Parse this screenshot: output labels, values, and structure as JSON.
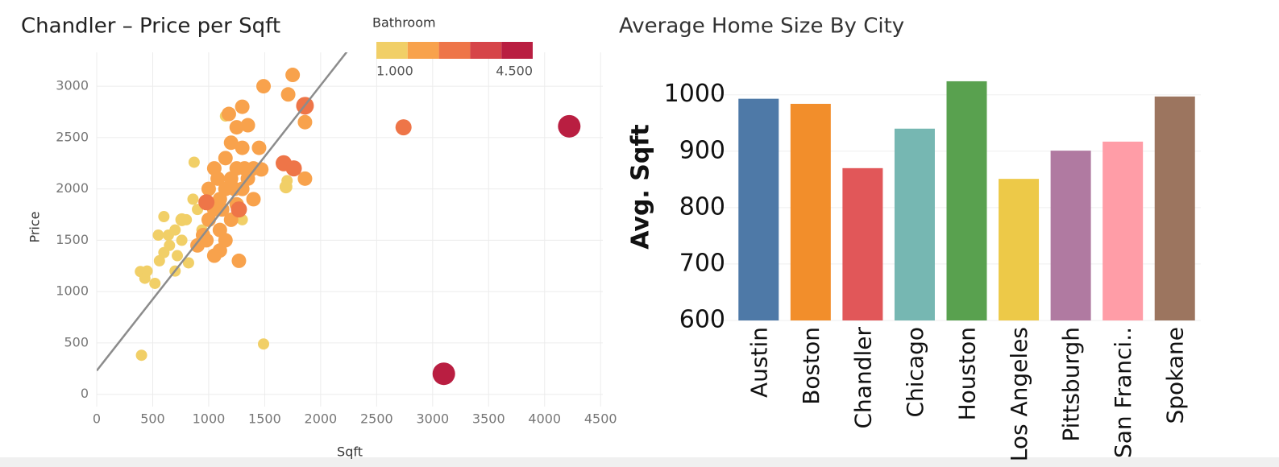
{
  "chart_data": [
    {
      "type": "scatter",
      "title": "Chandler – Price per Sqft",
      "x_label": "Sqft",
      "y_label": "Price",
      "x": [
        400,
        1490,
        390,
        430,
        450,
        520,
        550,
        600,
        640,
        560,
        600,
        650,
        700,
        720,
        760,
        800,
        820,
        860,
        870,
        900,
        940,
        1150,
        1300,
        1700,
        1690,
        700,
        760,
        900,
        950,
        1000,
        1050,
        1100,
        1150,
        1200,
        1250,
        1000,
        1050,
        1100,
        1150,
        1200,
        1250,
        1300,
        1350,
        1400,
        1450,
        1200,
        1250,
        1300,
        1350,
        1180,
        1490,
        1750,
        1710,
        1860,
        1860,
        1470,
        1270,
        1100,
        980,
        1050,
        1300,
        1400,
        1150,
        1320,
        1230,
        1120,
        1080,
        2740,
        1670,
        1760,
        980,
        1270,
        1860,
        3100,
        4220
      ],
      "y": [
        380,
        490,
        1195,
        1130,
        1200,
        1080,
        1550,
        1730,
        1550,
        1300,
        1380,
        1450,
        1600,
        1350,
        1500,
        1700,
        1280,
        1900,
        2260,
        1800,
        1600,
        2710,
        1700,
        2080,
        2020,
        1200,
        1700,
        1450,
        1550,
        1700,
        1800,
        1900,
        2000,
        2100,
        2200,
        2000,
        2200,
        1600,
        1500,
        1700,
        1850,
        2000,
        2100,
        2200,
        2400,
        2450,
        2600,
        2800,
        2620,
        2730,
        3000,
        3110,
        2920,
        2650,
        2100,
        2190,
        1300,
        1400,
        1500,
        1350,
        2400,
        1900,
        2300,
        2200,
        2000,
        1800,
        2100,
        2600,
        2250,
        2200,
        1870,
        1800,
        2810,
        200,
        2610
      ],
      "bathroom": [
        1,
        1,
        1,
        1,
        1,
        1,
        1,
        1,
        1,
        1,
        1,
        1,
        1,
        1,
        1,
        1,
        1,
        1,
        1,
        1,
        1,
        1,
        1,
        1,
        1.5,
        1,
        1.5,
        2,
        2,
        2,
        2,
        2,
        2,
        2,
        2,
        2,
        2,
        2,
        2,
        2,
        2,
        2,
        2,
        2,
        2,
        2,
        2,
        2,
        2,
        2,
        2,
        2,
        2,
        2,
        2,
        2,
        2,
        2,
        2,
        2,
        2,
        2,
        2,
        2,
        2,
        2,
        2,
        2.5,
        2.5,
        2.5,
        2.5,
        2.5,
        3,
        4.5,
        4.5
      ],
      "color_legend": {
        "title": "Bathroom",
        "ticks": [
          {
            "value": 1,
            "label": "1.000"
          },
          {
            "value": 4.5,
            "label": "4.500"
          }
        ],
        "colors": [
          "#f1cf67",
          "#f8a24c",
          "#ee7548",
          "#d64549",
          "#b91e41"
        ]
      },
      "trend_line": {
        "intercept": 230,
        "slope": 1.39,
        "color": "#8c8c8c"
      },
      "xlim": [
        0,
        4520
      ],
      "ylim": [
        -120,
        3330
      ],
      "xticks": [
        0,
        500,
        1000,
        1500,
        2000,
        2500,
        3000,
        3500,
        4000,
        4500
      ],
      "yticks": [
        0,
        500,
        1000,
        1500,
        2000,
        2500,
        3000
      ],
      "grid": true
    },
    {
      "type": "bar",
      "title": "Average Home Size By City",
      "y_label": "Avg. Sqft",
      "categories": [
        "Austin",
        "Boston",
        "Chandler",
        "Chicago",
        "Houston",
        "Los Angeles",
        "Pittsburgh",
        "San Franci..",
        "Spokane"
      ],
      "values": [
        993,
        984,
        870,
        940,
        1024,
        851,
        901,
        917,
        997
      ],
      "colors": [
        "#4e79a7",
        "#f28e2b",
        "#e15759",
        "#76b7b2",
        "#59a14f",
        "#edc948",
        "#b07aa1",
        "#ff9da7",
        "#9c755f"
      ],
      "ylim": [
        600,
        1071
      ],
      "yticks": [
        600,
        700,
        800,
        900,
        1000
      ],
      "grid": true
    }
  ]
}
